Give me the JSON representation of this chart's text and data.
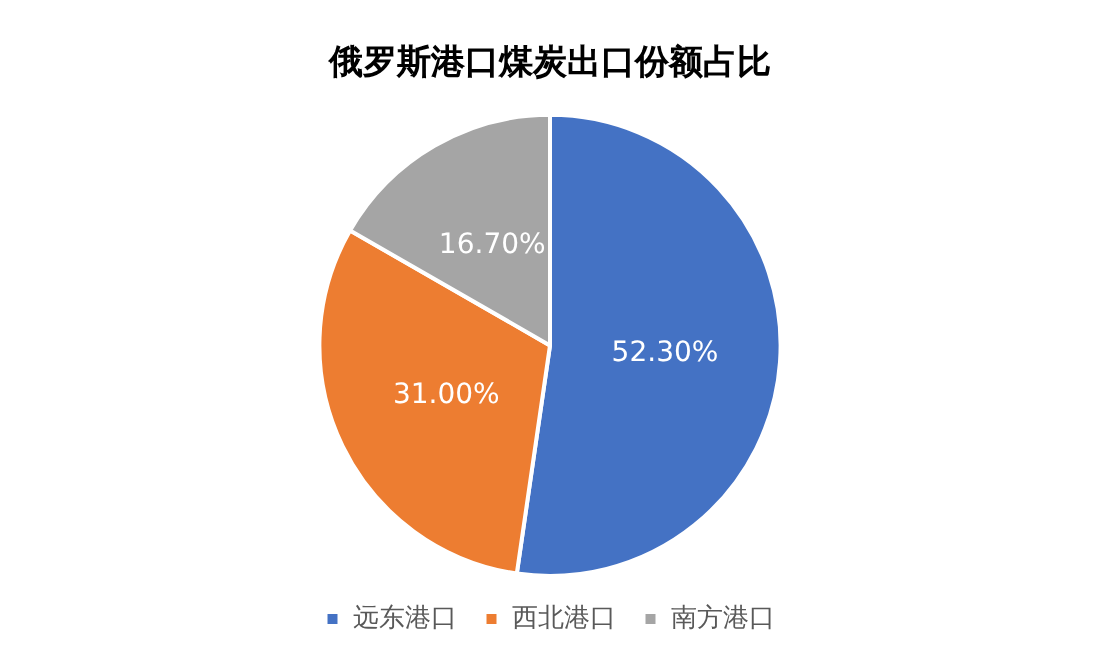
{
  "chart_data": {
    "type": "pie",
    "title": "俄罗斯港口煤炭出口份额占比",
    "categories": [
      "远东港口",
      "西北港口",
      "南方港口"
    ],
    "values": [
      52.3,
      31.0,
      16.7
    ],
    "value_labels": [
      "52.30%",
      "31.00%",
      "16.70%"
    ],
    "colors": [
      "#4472c4",
      "#ed7d31",
      "#a5a5a5"
    ],
    "legend": "bottom"
  }
}
